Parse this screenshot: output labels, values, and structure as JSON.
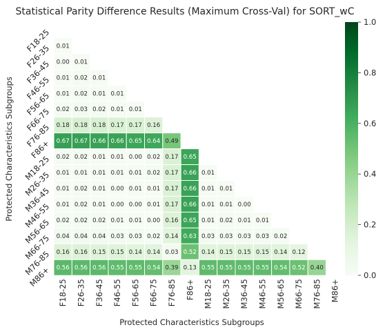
{
  "chart_data": {
    "type": "heatmap",
    "title": "Statistical Parity Difference Results (Maximum Cross-Val) for SORT_wC",
    "xlabel": "Protected Characteristics Subgroups",
    "ylabel": "Protected Characteristics Subgroups",
    "categories": [
      "F18-25",
      "F26-35",
      "F36-45",
      "F46-55",
      "F56-65",
      "F66-75",
      "F76-85",
      "F86+",
      "M18-25",
      "M26-35",
      "M36-45",
      "M46-55",
      "M56-65",
      "M66-75",
      "M76-85",
      "M86+"
    ],
    "mask": "upper-triangle-including-diagonal",
    "colormap": "Greens",
    "vmin": 0.0,
    "vmax": 1.0,
    "colorbar_ticks": [
      "0.0",
      "0.2",
      "0.4",
      "0.6",
      "0.8",
      "1.0"
    ],
    "values": [
      [],
      [
        "0.01"
      ],
      [
        "0.00",
        "0.01"
      ],
      [
        "0.01",
        "0.02",
        "0.01"
      ],
      [
        "0.01",
        "0.02",
        "0.01",
        "0.01"
      ],
      [
        "0.02",
        "0.03",
        "0.02",
        "0.01",
        "0.01"
      ],
      [
        "0.18",
        "0.18",
        "0.18",
        "0.17",
        "0.17",
        "0.16"
      ],
      [
        "0.67",
        "0.67",
        "0.66",
        "0.66",
        "0.65",
        "0.64",
        "0.49"
      ],
      [
        "0.02",
        "0.02",
        "0.01",
        "0.01",
        "0.00",
        "0.02",
        "0.17",
        "0.65"
      ],
      [
        "0.01",
        "0.01",
        "0.01",
        "0.01",
        "0.01",
        "0.02",
        "0.17",
        "0.66",
        "0.01"
      ],
      [
        "0.01",
        "0.02",
        "0.01",
        "0.00",
        "0.01",
        "0.01",
        "0.17",
        "0.66",
        "0.01",
        "0.01"
      ],
      [
        "0.01",
        "0.02",
        "0.01",
        "0.00",
        "0.00",
        "0.01",
        "0.17",
        "0.66",
        "0.01",
        "0.01",
        "0.00"
      ],
      [
        "0.02",
        "0.02",
        "0.02",
        "0.01",
        "0.01",
        "0.00",
        "0.16",
        "0.65",
        "0.01",
        "0.02",
        "0.01",
        "0.01"
      ],
      [
        "0.04",
        "0.04",
        "0.04",
        "0.03",
        "0.03",
        "0.02",
        "0.14",
        "0.63",
        "0.03",
        "0.03",
        "0.03",
        "0.03",
        "0.02"
      ],
      [
        "0.16",
        "0.16",
        "0.15",
        "0.15",
        "0.14",
        "0.14",
        "0.03",
        "0.52",
        "0.14",
        "0.15",
        "0.15",
        "0.15",
        "0.14",
        "0.12"
      ],
      [
        "0.56",
        "0.56",
        "0.56",
        "0.55",
        "0.55",
        "0.54",
        "0.39",
        "0.13",
        "0.55",
        "0.55",
        "0.55",
        "0.55",
        "0.54",
        "0.52",
        "0.40"
      ]
    ]
  }
}
